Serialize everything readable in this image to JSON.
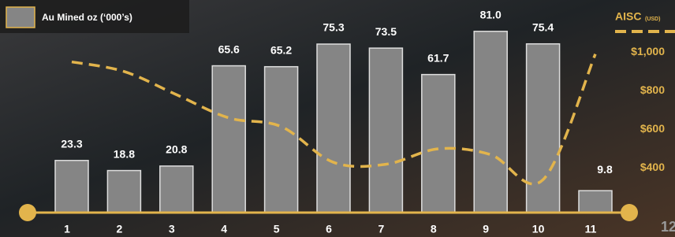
{
  "chart_data": {
    "type": "bar",
    "legend": "Au Mined oz (‘000’s)",
    "categories": [
      "1",
      "2",
      "3",
      "4",
      "5",
      "6",
      "7",
      "8",
      "9",
      "10",
      "11"
    ],
    "values": [
      23.3,
      18.8,
      20.8,
      65.6,
      65.2,
      75.3,
      73.5,
      61.7,
      81.0,
      75.4,
      9.8
    ],
    "value_labels": [
      "23.3",
      "18.8",
      "20.8",
      "65.6",
      "65.2",
      "75.3",
      "73.5",
      "61.7",
      "81.0",
      "75.4",
      "9.8"
    ],
    "color": "#858585",
    "ylim": [
      0,
      95
    ],
    "series": [
      {
        "name": "AISC",
        "unit": "(USD)",
        "color": "#e2b44c",
        "axis": "y2",
        "values": [
          950,
          900,
          780,
          660,
          615,
          430,
          420,
          500,
          470,
          340,
          990
        ]
      }
    ],
    "y2lim": [
      170,
      1270
    ],
    "y2ticks": [
      {
        "value": 400,
        "label": "$400"
      },
      {
        "value": 600,
        "label": "$600"
      },
      {
        "value": 800,
        "label": "$800"
      },
      {
        "value": 1000,
        "label": "$1,000"
      }
    ],
    "page_number": "12"
  }
}
